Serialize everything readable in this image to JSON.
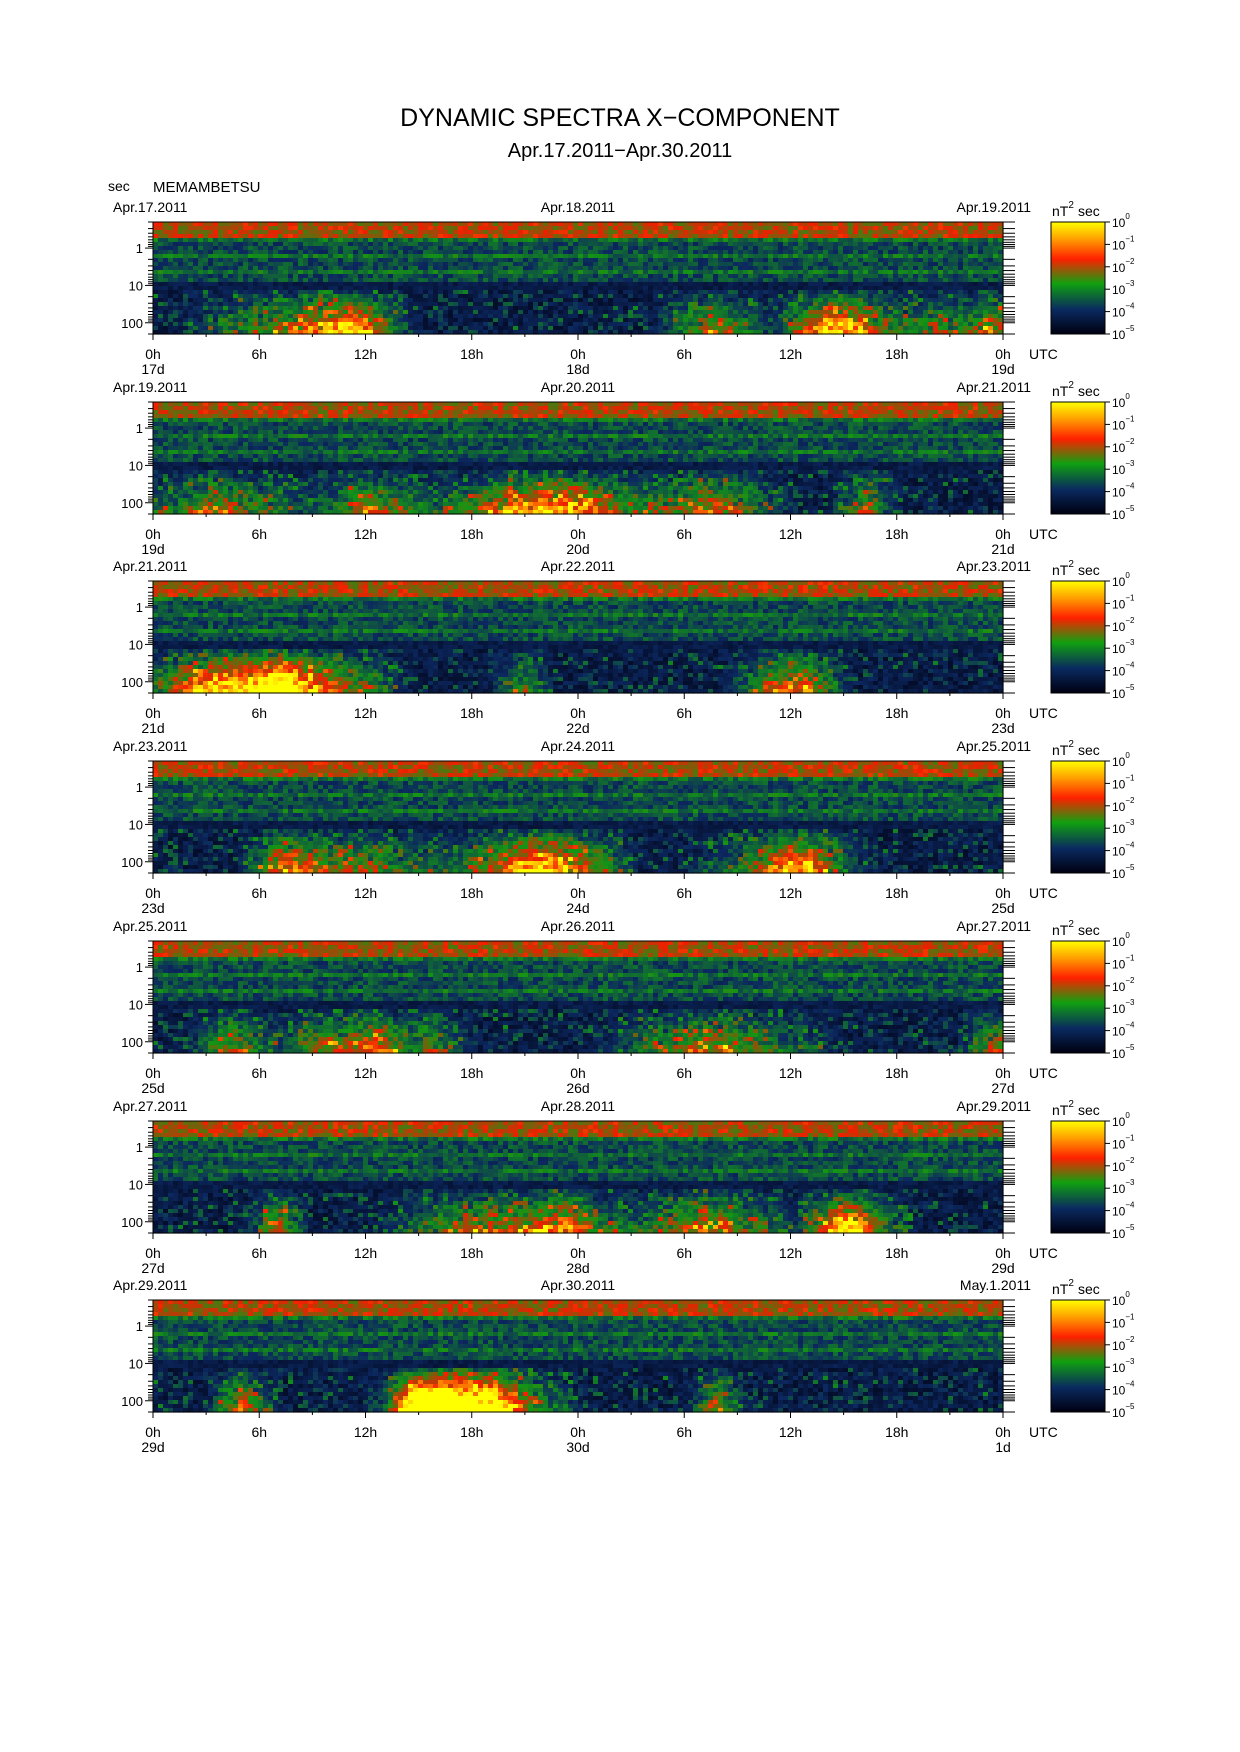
{
  "chart_data": {
    "type": "heatmap",
    "title": "DYNAMIC SPECTRA X−COMPONENT",
    "subtitle": "Apr.17.2011−Apr.30.2011",
    "station": "MEMAMBETSU",
    "ylabel": "sec",
    "y_scale": "log",
    "ylim": [
      0.2,
      200
    ],
    "y_ticks": [
      "1",
      "10",
      "100"
    ],
    "x_ticks": [
      "0h",
      "6h",
      "12h",
      "18h",
      "0h",
      "6h",
      "12h",
      "18h",
      "0h"
    ],
    "x_unit": "UTC",
    "colorbar": {
      "label_base": "nT",
      "label_exp": "2",
      "label_unit": "sec",
      "ticks": [
        {
          "base": "10",
          "exp": "0"
        },
        {
          "base": "10",
          "exp": "−1"
        },
        {
          "base": "10",
          "exp": "−2"
        },
        {
          "base": "10",
          "exp": "−3"
        },
        {
          "base": "10",
          "exp": "−4"
        },
        {
          "base": "10",
          "exp": "−5"
        }
      ],
      "colors": [
        "#ffff00",
        "#ffa000",
        "#ff2000",
        "#10a010",
        "#0a2a60",
        "#000010"
      ]
    },
    "panels": [
      {
        "start_label": "Apr.17.2011",
        "mid_label": "Apr.18.2011",
        "end_label": "Apr.19.2011",
        "day_labels": [
          "17d",
          "18d",
          "19d"
        ]
      },
      {
        "start_label": "Apr.19.2011",
        "mid_label": "Apr.20.2011",
        "end_label": "Apr.21.2011",
        "day_labels": [
          "19d",
          "20d",
          "21d"
        ]
      },
      {
        "start_label": "Apr.21.2011",
        "mid_label": "Apr.22.2011",
        "end_label": "Apr.23.2011",
        "day_labels": [
          "21d",
          "22d",
          "23d"
        ]
      },
      {
        "start_label": "Apr.23.2011",
        "mid_label": "Apr.24.2011",
        "end_label": "Apr.25.2011",
        "day_labels": [
          "23d",
          "24d",
          "25d"
        ]
      },
      {
        "start_label": "Apr.25.2011",
        "mid_label": "Apr.26.2011",
        "end_label": "Apr.27.2011",
        "day_labels": [
          "25d",
          "26d",
          "27d"
        ]
      },
      {
        "start_label": "Apr.27.2011",
        "mid_label": "Apr.28.2011",
        "end_label": "Apr.29.2011",
        "day_labels": [
          "27d",
          "28d",
          "29d"
        ]
      },
      {
        "start_label": "Apr.29.2011",
        "mid_label": "Apr.30.2011",
        "end_label": "May.1.2011",
        "day_labels": [
          "29d",
          "30d",
          "1d"
        ]
      }
    ]
  }
}
